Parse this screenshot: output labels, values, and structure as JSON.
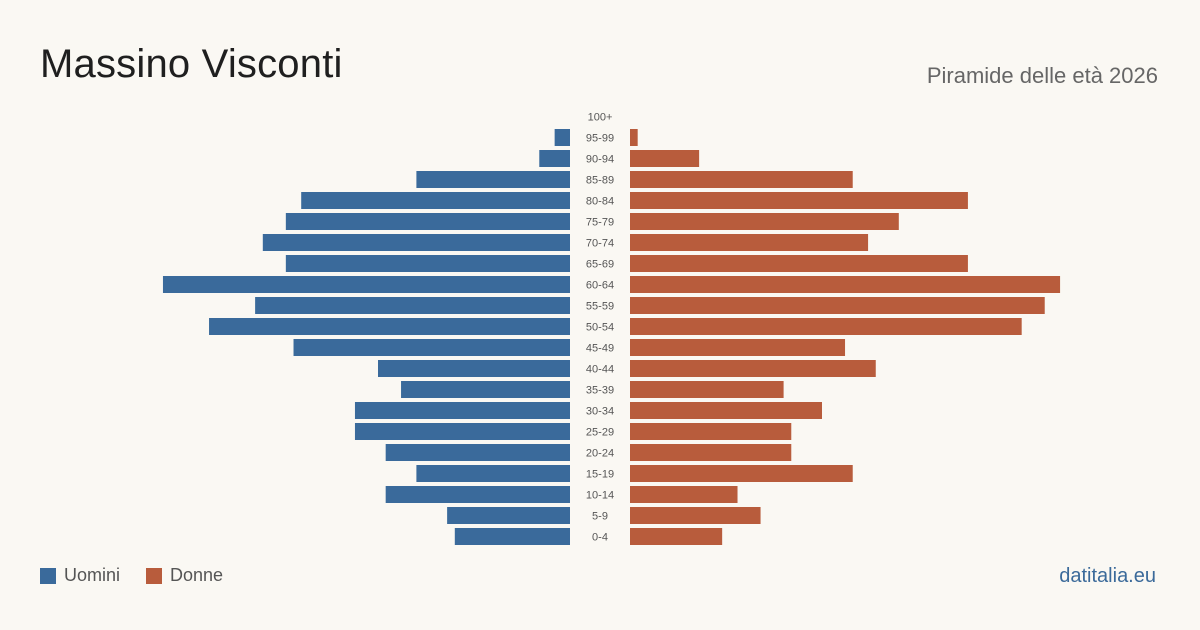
{
  "header": {
    "title": "Massino Visconti",
    "subtitle": "Piramide delle età 2026"
  },
  "legend": {
    "men_label": "Uomini",
    "women_label": "Donne"
  },
  "brand": "datitalia.eu",
  "colors": {
    "men": "#3a6a9b",
    "women": "#b85c3c",
    "background": "#faf8f3"
  },
  "chart_data": {
    "type": "bar",
    "orientation": "horizontal-pyramid",
    "categories": [
      "100+",
      "95-99",
      "90-94",
      "85-89",
      "80-84",
      "75-79",
      "70-74",
      "65-69",
      "60-64",
      "55-59",
      "50-54",
      "45-49",
      "40-44",
      "35-39",
      "30-34",
      "25-29",
      "20-24",
      "15-19",
      "10-14",
      "5-9",
      "0-4"
    ],
    "series": [
      {
        "name": "Uomini",
        "values": [
          0,
          2,
          4,
          20,
          35,
          37,
          40,
          37,
          53,
          41,
          47,
          36,
          25,
          22,
          28,
          28,
          24,
          20,
          24,
          16,
          15
        ]
      },
      {
        "name": "Donne",
        "values": [
          0,
          1,
          9,
          29,
          44,
          35,
          31,
          44,
          56,
          54,
          51,
          28,
          32,
          20,
          25,
          21,
          21,
          29,
          14,
          17,
          12
        ]
      }
    ],
    "xlim": [
      0,
      56
    ],
    "grid": false,
    "legend_position": "bottom-left"
  }
}
